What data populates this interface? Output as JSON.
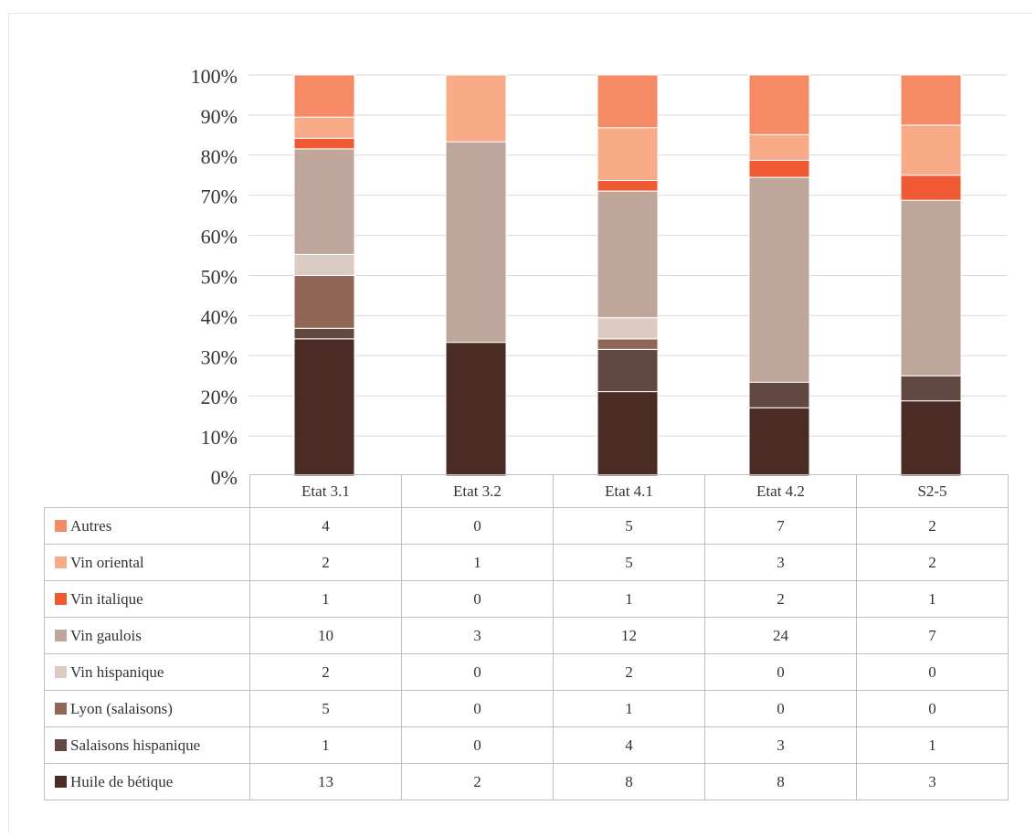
{
  "chart_data": {
    "type": "bar",
    "stacked": "percent",
    "y_ticks": [
      "0%",
      "10%",
      "20%",
      "30%",
      "40%",
      "50%",
      "60%",
      "70%",
      "80%",
      "90%",
      "100%"
    ],
    "ylim": [
      0,
      100
    ],
    "grid": true,
    "legend": "data-table",
    "categories": [
      "Etat 3.1",
      "Etat 3.2",
      "Etat 4.1",
      "Etat 4.2",
      "S2-5"
    ],
    "series": [
      {
        "name": "Huile de bétique",
        "color": "#4a2c25",
        "values": [
          13,
          2,
          8,
          8,
          3
        ]
      },
      {
        "name": "Salaisons hispanique",
        "color": "#614840",
        "values": [
          1,
          0,
          4,
          3,
          1
        ]
      },
      {
        "name": "Lyon (salaisons)",
        "color": "#906656",
        "values": [
          5,
          0,
          1,
          0,
          0
        ]
      },
      {
        "name": "Vin hispanique",
        "color": "#dccbc3",
        "values": [
          2,
          0,
          2,
          0,
          0
        ]
      },
      {
        "name": "Vin gaulois",
        "color": "#bfa69a",
        "values": [
          10,
          3,
          12,
          24,
          7
        ]
      },
      {
        "name": "Vin italique",
        "color": "#f05a32",
        "values": [
          1,
          0,
          1,
          2,
          1
        ]
      },
      {
        "name": "Vin oriental",
        "color": "#f8ab86",
        "values": [
          2,
          1,
          5,
          3,
          2
        ]
      },
      {
        "name": "Autres",
        "color": "#f58a64",
        "values": [
          4,
          0,
          5,
          7,
          2
        ]
      }
    ]
  }
}
